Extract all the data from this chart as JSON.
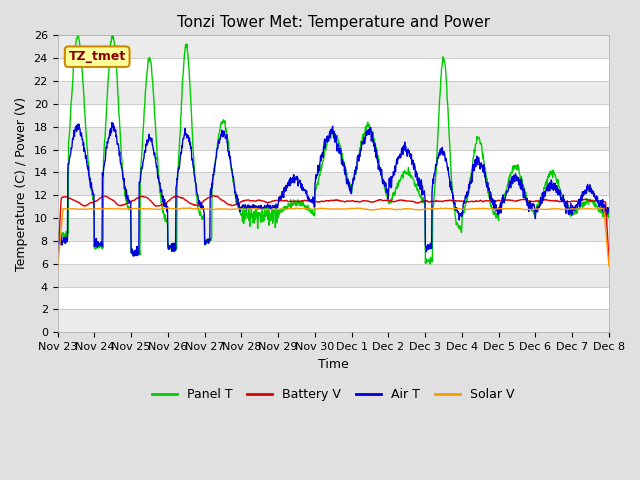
{
  "title": "Tonzi Tower Met: Temperature and Power",
  "xlabel": "Time",
  "ylabel": "Temperature (C) / Power (V)",
  "ylim": [
    0,
    26
  ],
  "yticks": [
    0,
    2,
    4,
    6,
    8,
    10,
    12,
    14,
    16,
    18,
    20,
    22,
    24,
    26
  ],
  "xtick_labels": [
    "Nov 23",
    "Nov 24",
    "Nov 25",
    "Nov 26",
    "Nov 27",
    "Nov 28",
    "Nov 29",
    "Nov 30",
    "Dec 1",
    "Dec 2",
    "Dec 3",
    "Dec 4",
    "Dec 5",
    "Dec 6",
    "Dec 7",
    "Dec 8"
  ],
  "series": {
    "Panel T": {
      "color": "#00cc00",
      "linewidth": 1.0
    },
    "Battery V": {
      "color": "#dd0000",
      "linewidth": 1.0
    },
    "Air T": {
      "color": "#0000dd",
      "linewidth": 1.0
    },
    "Solar V": {
      "color": "#ff9900",
      "linewidth": 1.0
    }
  },
  "annotation": {
    "text": "TZ_tmet",
    "fontsize": 9,
    "color": "#880000",
    "bgcolor": "#ffff99",
    "edgecolor": "#cc8800"
  },
  "bg_color": "#e0e0e0",
  "plot_bg_color": "#ffffff",
  "grid_color": "#cccccc",
  "title_fontsize": 11,
  "axis_fontsize": 9,
  "tick_fontsize": 8,
  "n_days": 15,
  "n_pts": 1500
}
